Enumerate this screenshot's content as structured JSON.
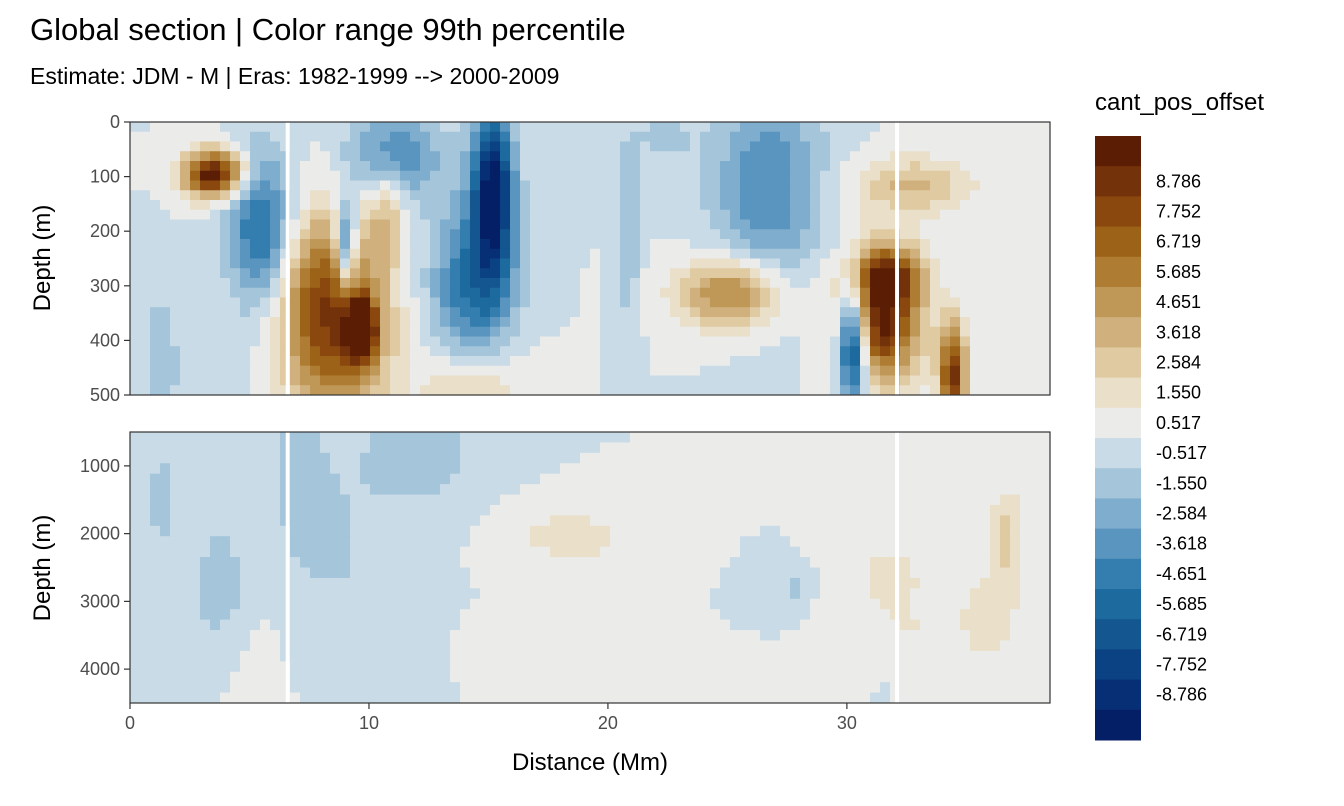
{
  "chart_data": {
    "type": "heatmap",
    "title": "Global section | Color range 99th percentile",
    "subtitle": "Estimate: JDM - M | Eras: 1982-1999 --> 2000-2009",
    "xlabel": "Distance (Mm)",
    "ylabel": "Depth (m)",
    "xlim": [
      0,
      38.5
    ],
    "x_ticks": [
      0,
      10,
      20,
      30
    ],
    "panels": [
      {
        "ylim": [
          0,
          500
        ],
        "y_ticks": [
          0,
          100,
          200,
          300,
          400,
          500
        ]
      },
      {
        "ylim": [
          500,
          4500
        ],
        "y_ticks": [
          1000,
          2000,
          3000,
          4000
        ]
      }
    ],
    "legend": {
      "title": "cant_pos_offset",
      "position": "right",
      "labels": [
        "8.786",
        "7.752",
        "6.719",
        "5.685",
        "4.651",
        "3.618",
        "2.584",
        "1.550",
        "0.517",
        "-0.517",
        "-1.550",
        "-2.584",
        "-3.618",
        "-4.651",
        "-5.685",
        "-6.719",
        "-7.752",
        "-8.786"
      ],
      "colors": [
        "#5b1d04",
        "#74320a",
        "#8a480f",
        "#9c6218",
        "#ae7d33",
        "#bf9858",
        "#d0b17d",
        "#dfcaa2",
        "#eadfc8",
        "#ebebe9",
        "#c9dbe7",
        "#a4c5da",
        "#7fadcd",
        "#5a95bf",
        "#347eaf",
        "#1d6a9f",
        "#135690",
        "#0b4283",
        "#072f75",
        "#041f65"
      ]
    },
    "white_gaps_x": [
      6.6,
      32.1
    ]
  }
}
